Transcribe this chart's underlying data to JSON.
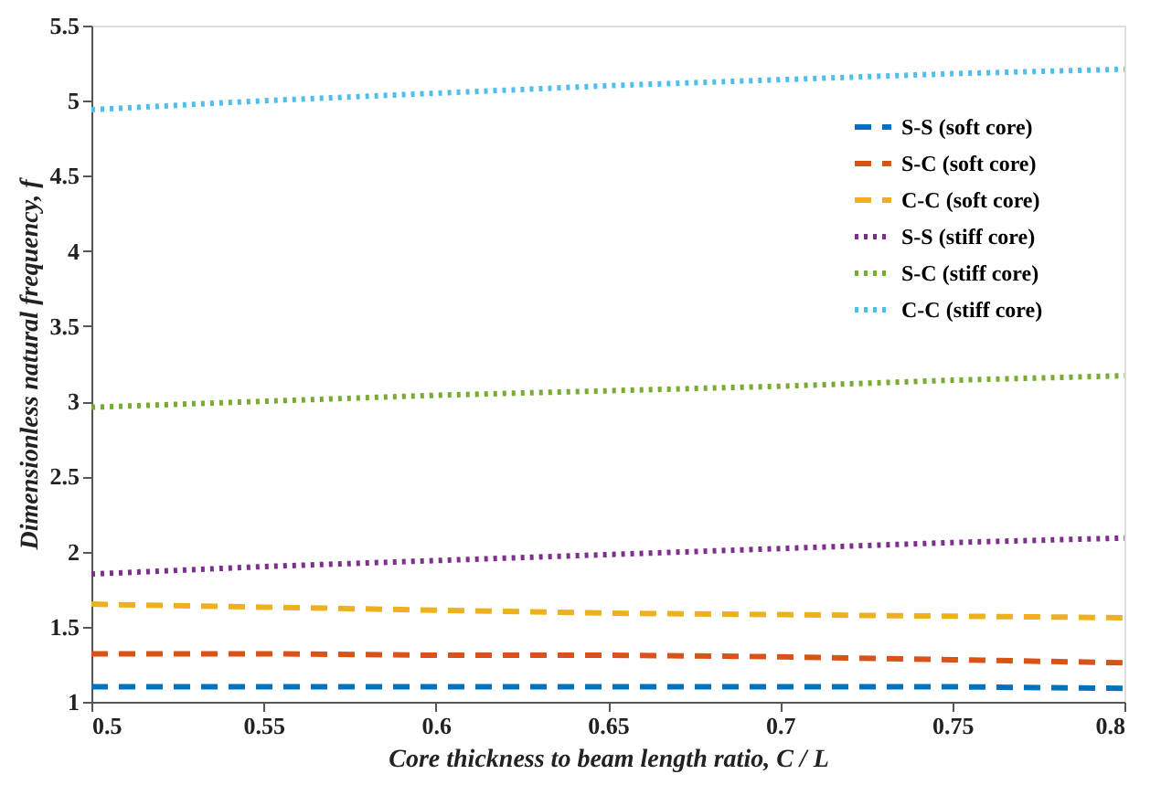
{
  "chart_data": {
    "type": "line",
    "xlabel": "Core thickness to beam length ratio, C / L",
    "ylabel": "Dimensionless natural frequency, f",
    "x": [
      0.5,
      0.55,
      0.6,
      0.65,
      0.7,
      0.75,
      0.8
    ],
    "xlim": [
      0.5,
      0.8
    ],
    "xticks": [
      0.5,
      0.55,
      0.6,
      0.65,
      0.7,
      0.75,
      0.8
    ],
    "ylim": [
      1,
      5.5
    ],
    "yticks": [
      1,
      1.5,
      2,
      2.5,
      3,
      3.5,
      4,
      4.5,
      5,
      5.5
    ],
    "grid": false,
    "legend": "top right",
    "marker": "none",
    "series": [
      {
        "name": "S-S (soft core)",
        "color": "#0072bd",
        "line_style": "dashed",
        "values": [
          1.1,
          1.1,
          1.1,
          1.1,
          1.1,
          1.1,
          1.09
        ]
      },
      {
        "name": "S-C (soft core)",
        "color": "#d95319",
        "line_style": "dashed",
        "values": [
          1.32,
          1.32,
          1.31,
          1.31,
          1.3,
          1.28,
          1.26
        ]
      },
      {
        "name": "C-C (soft core)",
        "color": "#edb120",
        "line_style": "dashed",
        "values": [
          1.65,
          1.63,
          1.61,
          1.59,
          1.58,
          1.57,
          1.56
        ]
      },
      {
        "name": "S-S (stiff core)",
        "color": "#7e2f8e",
        "line_style": "dotted",
        "values": [
          1.85,
          1.9,
          1.94,
          1.98,
          2.02,
          2.06,
          2.09
        ]
      },
      {
        "name": "S-C (stiff core)",
        "color": "#77ac30",
        "line_style": "dotted",
        "values": [
          2.96,
          3.0,
          3.04,
          3.07,
          3.1,
          3.14,
          3.17
        ]
      },
      {
        "name": "C-C (stiff core)",
        "color": "#4dbeee",
        "line_style": "dotted",
        "values": [
          4.94,
          5.0,
          5.05,
          5.1,
          5.14,
          5.18,
          5.21
        ]
      }
    ]
  }
}
